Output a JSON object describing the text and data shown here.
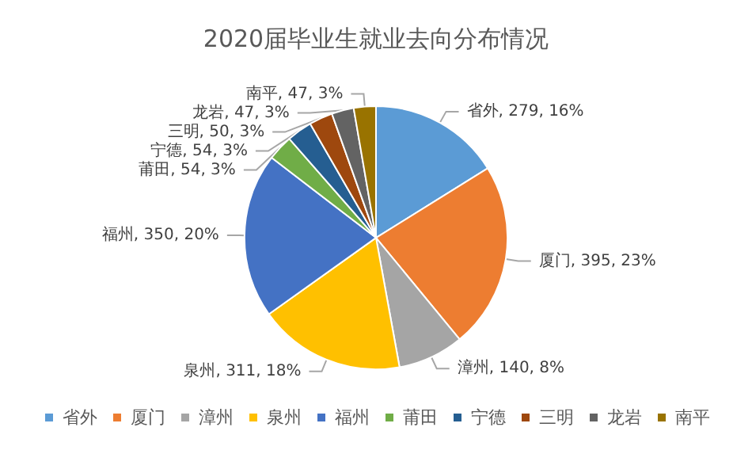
{
  "chart_data": {
    "type": "pie",
    "title": "2020届毕业生就业去向分布情况",
    "categories": [
      "省外",
      "厦门",
      "漳州",
      "泉州",
      "福州",
      "莆田",
      "宁德",
      "三明",
      "龙岩",
      "南平"
    ],
    "values": [
      279,
      395,
      140,
      311,
      350,
      54,
      54,
      50,
      47,
      47
    ],
    "colors": [
      "#5b9bd5",
      "#ed7d31",
      "#a5a5a5",
      "#ffc000",
      "#4472c4",
      "#70ad47",
      "#255e91",
      "#9e480e",
      "#636363",
      "#997300"
    ],
    "value_labels": [
      "省外, 279, 16%",
      "厦门, 395, 23%",
      "漳州, 140, 8%",
      "泉州, 311, 18%",
      "福州, 350, 20%",
      "莆田, 54, 3%",
      "宁德, 54, 3%",
      "三明, 50, 3%",
      "龙岩, 47, 3%",
      "南平, 47, 3%"
    ],
    "legend": "bottom"
  }
}
